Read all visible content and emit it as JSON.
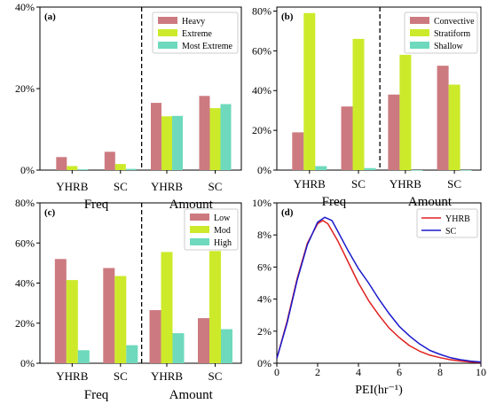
{
  "colors": {
    "heavy": "#cc7a80",
    "extreme": "#ccea2a",
    "most": "#6ed9bc",
    "yhrb": "#e02020",
    "sc": "#1a1acc"
  },
  "chart_data": [
    {
      "panel": "(a)",
      "type": "bar",
      "groups": [
        "YHRB",
        "SC",
        "YHRB",
        "SC"
      ],
      "sections": [
        "Freq",
        "Amount"
      ],
      "series": [
        {
          "name": "Heavy",
          "values": [
            3.2,
            4.5,
            16.5,
            18.2
          ]
        },
        {
          "name": "Extreme",
          "values": [
            1.0,
            1.5,
            13.2,
            15.2
          ]
        },
        {
          "name": "Most Extreme",
          "values": [
            0.2,
            0.3,
            13.3,
            16.2
          ]
        }
      ],
      "yticks": [
        "0%",
        "20%",
        "40%"
      ],
      "ylim": [
        0,
        40
      ],
      "legend": "top-right",
      "divider": "dashed line between Freq and Amount"
    },
    {
      "panel": "(b)",
      "type": "bar",
      "groups": [
        "YHRB",
        "SC",
        "YHRB",
        "SC"
      ],
      "sections": [
        "Freq",
        "Amount"
      ],
      "series": [
        {
          "name": "Convective",
          "values": [
            19,
            32,
            38,
            52.5
          ]
        },
        {
          "name": "Stratiform",
          "values": [
            79,
            66,
            58,
            43
          ]
        },
        {
          "name": "Shallow",
          "values": [
            2,
            1,
            0,
            0
          ]
        }
      ],
      "yticks": [
        "0%",
        "20%",
        "40%",
        "60%",
        "80%"
      ],
      "ylim": [
        0,
        82
      ],
      "legend": "top-right",
      "divider": "dashed line between Freq and Amount"
    },
    {
      "panel": "(c)",
      "type": "bar",
      "groups": [
        "YHRB",
        "SC",
        "YHRB",
        "SC"
      ],
      "sections": [
        "Freq",
        "Amount"
      ],
      "series": [
        {
          "name": "Low",
          "values": [
            52,
            47.5,
            26.5,
            22.5
          ]
        },
        {
          "name": "Mod",
          "values": [
            41.5,
            43.5,
            55.5,
            56
          ]
        },
        {
          "name": "High",
          "values": [
            6.5,
            9,
            15,
            17
          ]
        }
      ],
      "yticks": [
        "0%",
        "20%",
        "40%",
        "60%",
        "80%"
      ],
      "ylim": [
        0,
        80
      ],
      "legend": "top-right",
      "divider": "dashed line between Freq and Amount"
    },
    {
      "panel": "(d)",
      "type": "line",
      "xlabel": "PEI(hr⁻¹)",
      "xlim": [
        0,
        10
      ],
      "ylim": [
        0,
        10
      ],
      "xticks": [
        "0",
        "2",
        "4",
        "6",
        "8",
        "10"
      ],
      "yticks": [
        "0%",
        "2%",
        "4%",
        "6%",
        "8%",
        "10%"
      ],
      "legend": "top-right",
      "series": [
        {
          "name": "YHRB",
          "x": [
            0,
            0.5,
            1,
            1.5,
            2,
            2.25,
            2.5,
            3,
            3.5,
            4,
            4.5,
            5,
            5.5,
            6,
            6.5,
            7,
            7.5,
            8,
            8.5,
            9,
            9.5,
            10
          ],
          "y": [
            0.3,
            2.6,
            5.3,
            7.5,
            8.7,
            8.9,
            8.7,
            7.6,
            6.3,
            5.0,
            3.9,
            3.0,
            2.2,
            1.6,
            1.1,
            0.75,
            0.5,
            0.35,
            0.22,
            0.14,
            0.08,
            0.05
          ]
        },
        {
          "name": "SC",
          "x": [
            0,
            0.5,
            1,
            1.5,
            2,
            2.35,
            2.7,
            3,
            3.5,
            4,
            4.5,
            5,
            5.5,
            6,
            6.5,
            7,
            7.5,
            8,
            8.5,
            9,
            9.5,
            10
          ],
          "y": [
            0.3,
            2.5,
            5.2,
            7.4,
            8.8,
            9.1,
            8.9,
            8.2,
            7.0,
            5.9,
            5.0,
            4.0,
            3.1,
            2.3,
            1.7,
            1.2,
            0.8,
            0.55,
            0.35,
            0.22,
            0.13,
            0.08
          ]
        }
      ]
    }
  ]
}
